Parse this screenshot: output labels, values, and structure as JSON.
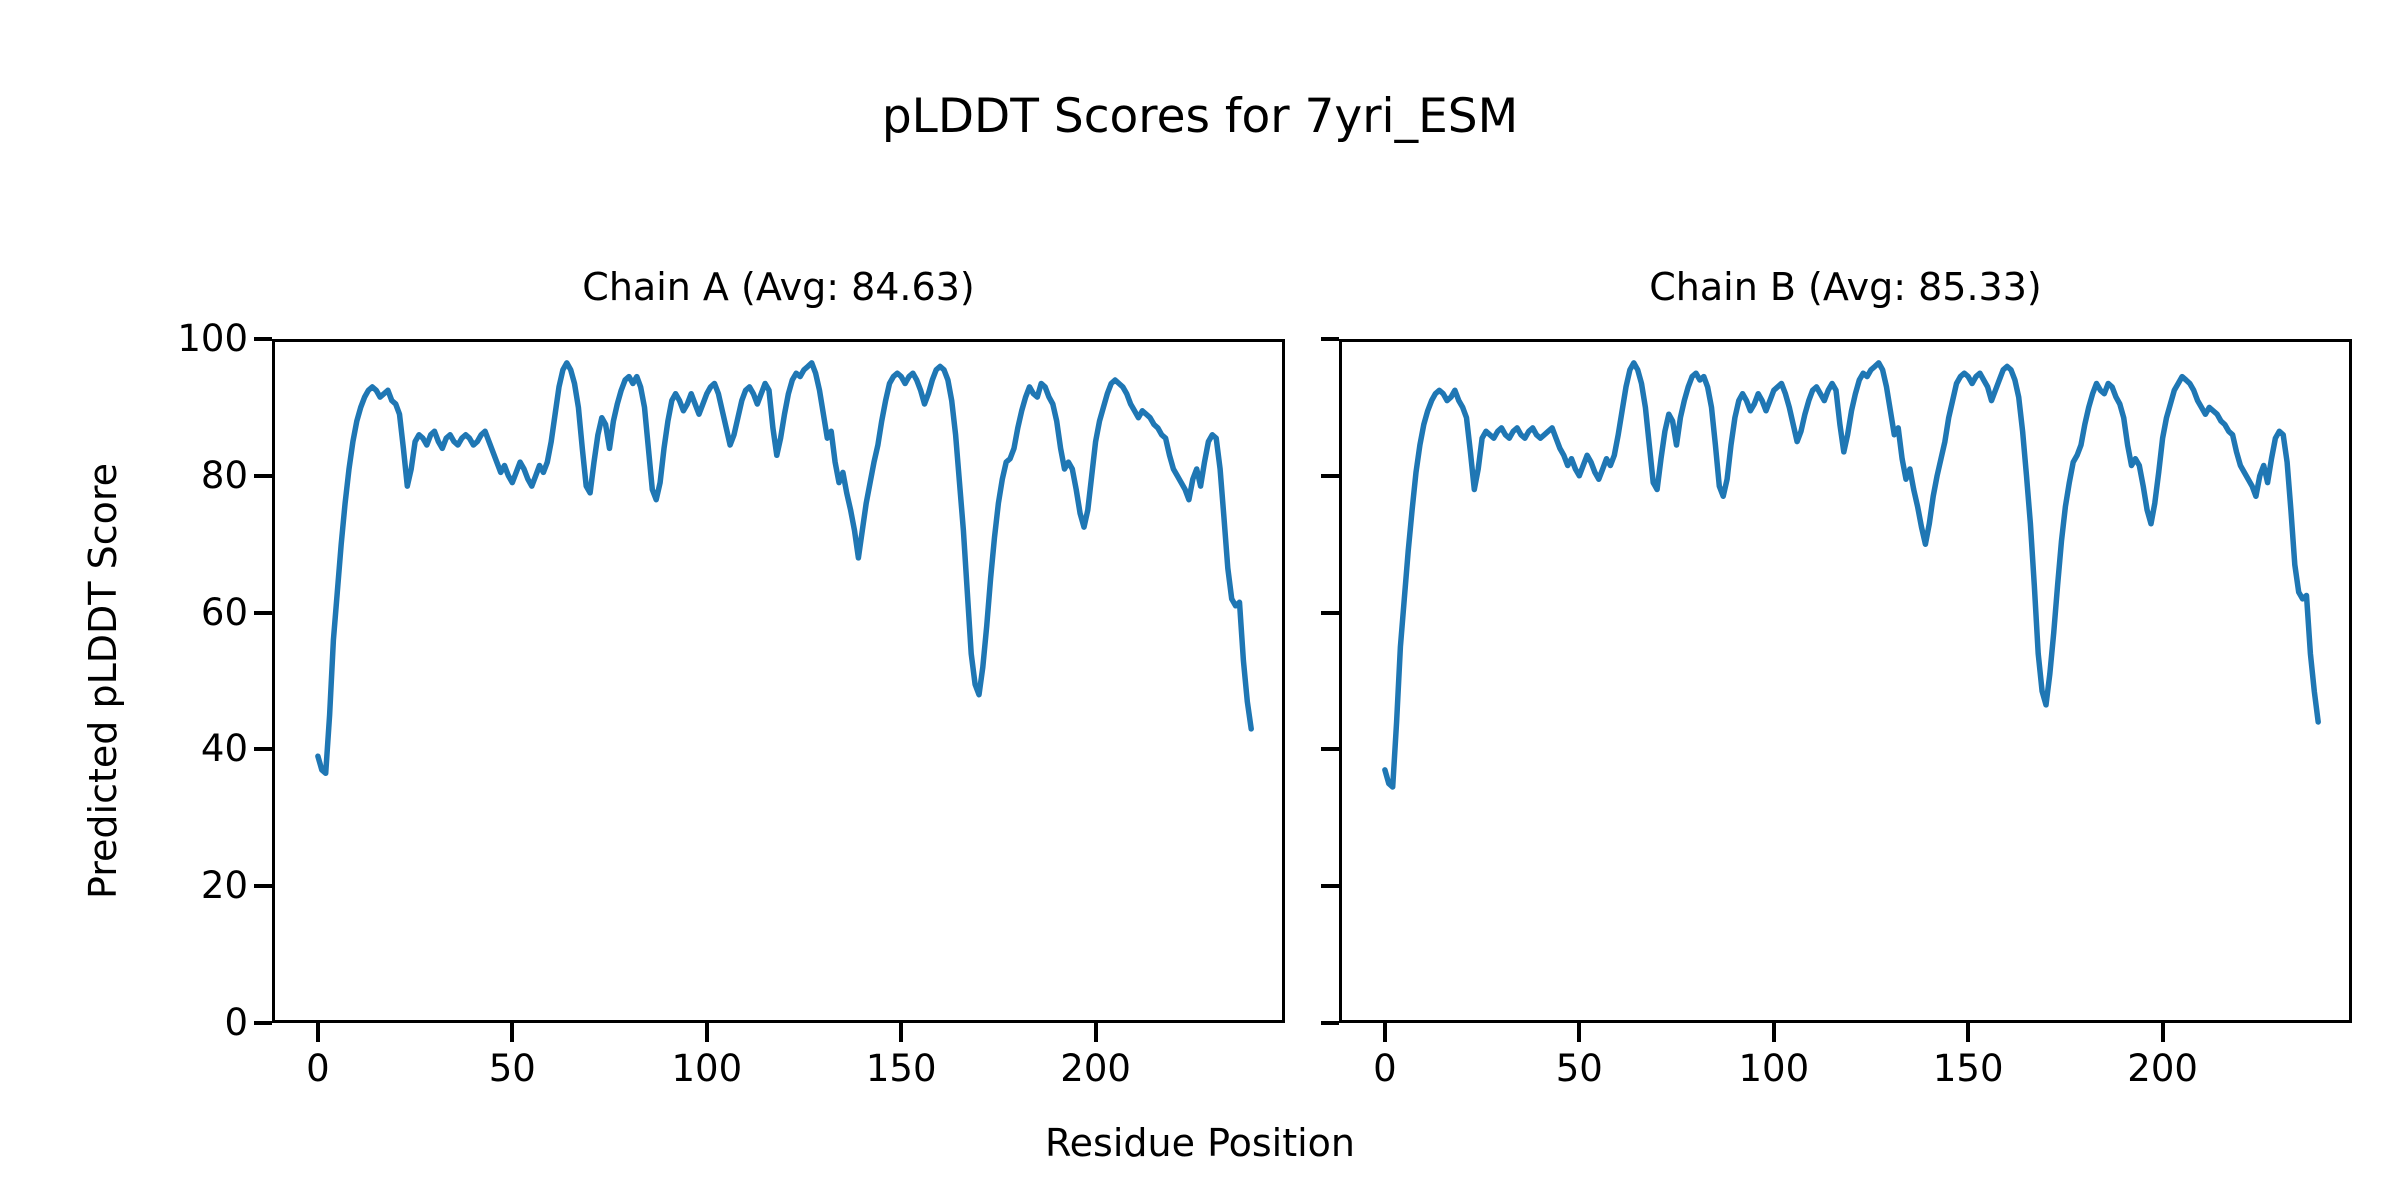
{
  "figure": {
    "title": "pLDDT Scores for 7yri_ESM",
    "xlabel": "Residue Position",
    "ylabel": "Predicted pLDDT Score",
    "background_color": "#ffffff",
    "spine_color": "#000000",
    "line_color": "#1f77b4"
  },
  "chart_data": {
    "type": "line",
    "title": "pLDDT Scores for 7yri_ESM",
    "xlabel": "Residue Position",
    "ylabel": "Predicted pLDDT Score",
    "grid": false,
    "legend": null,
    "line_color": "#1f77b4",
    "xlim": [
      -11.8,
      248.7
    ],
    "ylim": [
      0,
      100
    ],
    "x_ticks": [
      0,
      50,
      100,
      150,
      200
    ],
    "y_ticks": [
      0,
      20,
      40,
      60,
      80,
      100
    ],
    "subplots": [
      {
        "title": "Chain A (Avg: 84.63)",
        "chain": "A",
        "avg": 84.63,
        "x_start": 0,
        "x_step": 1,
        "values": [
          39,
          37,
          36.5,
          45,
          56,
          63,
          70,
          76,
          81,
          85,
          88,
          90,
          91.5,
          92.5,
          93,
          92.5,
          91.5,
          92,
          92.5,
          91,
          90.5,
          89,
          84,
          78.5,
          81,
          85,
          86,
          85.5,
          84.5,
          86,
          86.5,
          85,
          84,
          85.5,
          86,
          85,
          84.5,
          85.5,
          86,
          85.5,
          84.5,
          85,
          86,
          86.5,
          85,
          83.5,
          82,
          80.5,
          81.5,
          80,
          79,
          80.5,
          82,
          81,
          79.5,
          78.5,
          80,
          81.5,
          80.5,
          82,
          85,
          89,
          93,
          95.5,
          96.5,
          95.5,
          93.5,
          90,
          84,
          78.5,
          77.5,
          82,
          86,
          88.5,
          87.5,
          84,
          88,
          90.5,
          92.5,
          94,
          94.5,
          93.5,
          94.5,
          93,
          90,
          84,
          78,
          76.5,
          79,
          84,
          88,
          91,
          92,
          91,
          89.5,
          90.5,
          92,
          90.5,
          89,
          90.5,
          92,
          93,
          93.5,
          92,
          89.5,
          87,
          84.5,
          86,
          88.5,
          91,
          92.5,
          93,
          92,
          90.5,
          92,
          93.5,
          92.5,
          87,
          83,
          85.5,
          89,
          92,
          94,
          95,
          94.5,
          95.5,
          96,
          96.5,
          95,
          92.5,
          89,
          85.5,
          86.5,
          82,
          79,
          80.5,
          77.5,
          75,
          72,
          68,
          72,
          76,
          79,
          82,
          84.5,
          88,
          91,
          93.5,
          94.5,
          95,
          94.5,
          93.5,
          94.5,
          95,
          94,
          92.5,
          90.5,
          92,
          94,
          95.5,
          96,
          95.5,
          94,
          91,
          86,
          79,
          72,
          63,
          54,
          49.5,
          48,
          52,
          58,
          65,
          71,
          76,
          79.5,
          82,
          82.5,
          84,
          87,
          89.5,
          91.5,
          93,
          92,
          91.5,
          93.5,
          93,
          91.5,
          90.5,
          88,
          84,
          81,
          82,
          81,
          78,
          74.5,
          72.5,
          75,
          80,
          85,
          88,
          90,
          92,
          93.5,
          94,
          93.5,
          93,
          92,
          90.5,
          89.5,
          88.5,
          89.5,
          89,
          88.5,
          87.5,
          87,
          86,
          85.5,
          83,
          81,
          80,
          79,
          78,
          76.5,
          79.5,
          81,
          78.5,
          82,
          85,
          86,
          85.5,
          81,
          74,
          66.5,
          62,
          61,
          61.5,
          53,
          47,
          43
        ]
      },
      {
        "title": "Chain B (Avg: 85.33)",
        "chain": "B",
        "avg": 85.33,
        "x_start": 0,
        "x_step": 1,
        "values": [
          37,
          35,
          34.5,
          44,
          55,
          62,
          69,
          75,
          80.5,
          84.5,
          87.5,
          89.5,
          91,
          92,
          92.5,
          92,
          91,
          91.5,
          92.5,
          91,
          90,
          88.5,
          83.5,
          78,
          81,
          85.5,
          86.5,
          86,
          85.5,
          86.5,
          87,
          86,
          85.5,
          86.5,
          87,
          86,
          85.5,
          86.5,
          87,
          86,
          85.5,
          86,
          86.5,
          87,
          85.5,
          84,
          83,
          81.5,
          82.5,
          81,
          80,
          81.5,
          83,
          82,
          80.5,
          79.5,
          81,
          82.5,
          81.5,
          83,
          86,
          89.5,
          93,
          95.5,
          96.5,
          95.5,
          93.5,
          90,
          84.5,
          79,
          78,
          82.5,
          86.5,
          89,
          88,
          84.5,
          88.5,
          91,
          93,
          94.5,
          95,
          94,
          94.5,
          93,
          90,
          84.5,
          78.5,
          77,
          79.5,
          84.5,
          88.5,
          91,
          92,
          91,
          89.5,
          90.5,
          92,
          91,
          89.5,
          91,
          92.5,
          93,
          93.5,
          92,
          90,
          87.5,
          85,
          86.5,
          89,
          91,
          92.5,
          93,
          92,
          91,
          92.5,
          93.5,
          92.5,
          87.5,
          83.5,
          86,
          89.5,
          92,
          94,
          95,
          94.5,
          95.5,
          96,
          96.5,
          95.5,
          93,
          89.5,
          86,
          87,
          82.5,
          79.5,
          81,
          78,
          75.5,
          72.5,
          70,
          73,
          77,
          80,
          82.5,
          85,
          88.5,
          91,
          93.5,
          94.5,
          95,
          94.5,
          93.5,
          94.5,
          95,
          94,
          93,
          91,
          92.5,
          94,
          95.5,
          96,
          95.5,
          94,
          91.5,
          86.5,
          80,
          73,
          64,
          54,
          48.5,
          46.5,
          51,
          57,
          64,
          70.5,
          75.5,
          79,
          82,
          83,
          84.5,
          87.5,
          90,
          92,
          93.5,
          92.5,
          92,
          93.5,
          93,
          91.5,
          90.5,
          88.5,
          84.5,
          81.5,
          82.5,
          81.5,
          78.5,
          75,
          73,
          76,
          80.5,
          85.5,
          88.5,
          90.5,
          92.5,
          93.5,
          94.5,
          94,
          93.5,
          92.5,
          91,
          90,
          89,
          90,
          89.5,
          89,
          88,
          87.5,
          86.5,
          86,
          83.5,
          81.5,
          80.5,
          79.5,
          78.5,
          77,
          80,
          81.5,
          79,
          82.5,
          85.5,
          86.5,
          86,
          82,
          75,
          67,
          63,
          62,
          62.5,
          54,
          48.5,
          44
        ]
      }
    ]
  }
}
